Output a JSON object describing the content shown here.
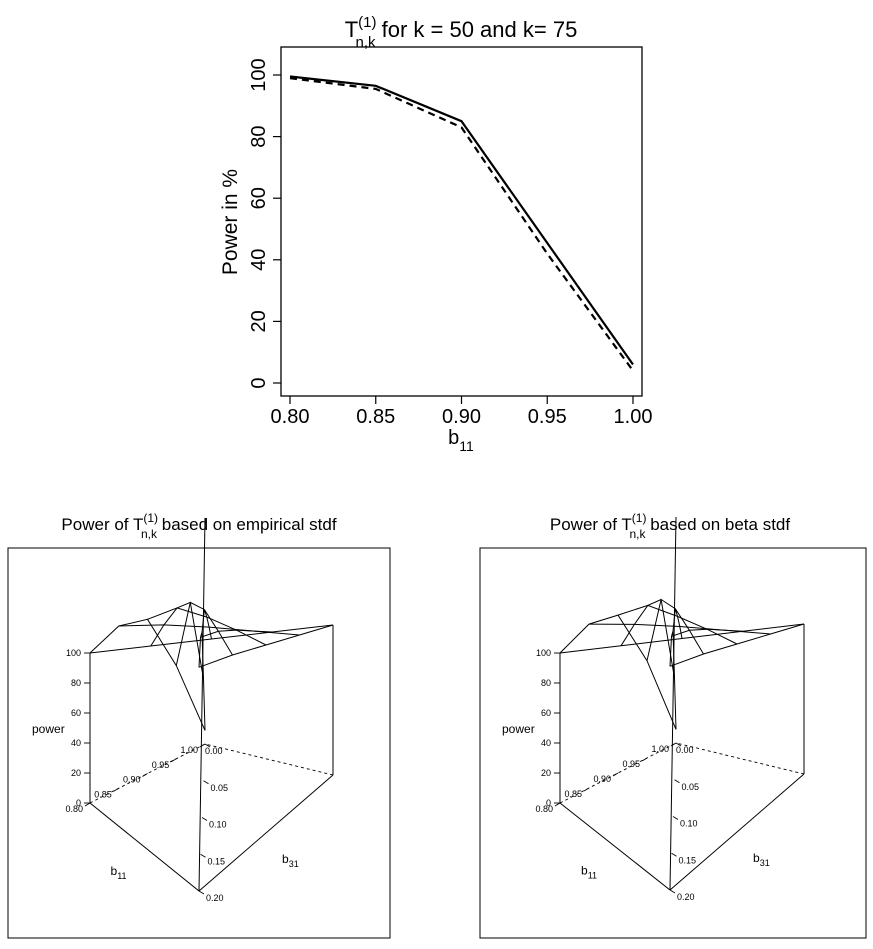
{
  "chart_data": [
    {
      "type": "line",
      "title": {
        "main": "T",
        "sup": "(1)",
        "sub": "n,k",
        "rest": " for k = 50 and k= 75"
      },
      "xlabel": {
        "main": "b",
        "sub": "11"
      },
      "ylabel": "Power in %",
      "x": [
        0.8,
        0.85,
        0.9,
        0.95,
        1.0
      ],
      "x_tick_labels": [
        "0.80",
        "0.85",
        "0.90",
        "0.95",
        "1.00"
      ],
      "y_tick_labels": [
        "0",
        "20",
        "40",
        "60",
        "80",
        "100"
      ],
      "xlim": [
        0.8,
        1.0
      ],
      "ylim": [
        0,
        100
      ],
      "series": [
        {
          "style": "solid",
          "values": [
            99.5,
            96.5,
            85.0,
            45.5,
            6.0
          ]
        },
        {
          "style": "dashed",
          "values": [
            99.0,
            95.5,
            83.0,
            42.0,
            4.0
          ]
        }
      ]
    },
    {
      "type": "surface",
      "title": {
        "pre": "Power of ",
        "main": "T",
        "sup": "(1)",
        "sub": "n,k",
        "rest": " based on empirical stdf"
      },
      "zlabel": "power",
      "xlabel": {
        "main": "b",
        "sub": "11"
      },
      "ylabel": {
        "main": "b",
        "sub": "31"
      },
      "b11": [
        0.8,
        0.85,
        0.9,
        0.95,
        1.0
      ],
      "b31": [
        0.0,
        0.05,
        0.1,
        0.15,
        0.2
      ],
      "b11_tick_labels": [
        "0.80",
        "0.85",
        "0.90",
        "0.95",
        "1.00"
      ],
      "b31_tick_labels": [
        "0.00",
        "0.05",
        "0.10",
        "0.15",
        "0.20"
      ],
      "z_tick_labels": [
        "0",
        "20",
        "40",
        "60",
        "80",
        "100"
      ],
      "zlim": [
        0,
        100
      ],
      "power": [
        [
          100,
          100,
          100,
          100,
          100
        ],
        [
          96,
          99,
          100,
          100,
          100
        ],
        [
          82,
          96,
          99,
          100,
          100
        ],
        [
          45,
          88,
          97,
          99,
          100
        ],
        [
          6,
          45,
          82,
          96,
          99
        ]
      ]
    },
    {
      "type": "surface",
      "title": {
        "pre": "Power of ",
        "main": "T",
        "sup": "(1)",
        "sub": "n,k",
        "rest": " based on beta stdf"
      },
      "zlabel": "power",
      "xlabel": {
        "main": "b",
        "sub": "11"
      },
      "ylabel": {
        "main": "b",
        "sub": "31"
      },
      "b11": [
        0.8,
        0.85,
        0.9,
        0.95,
        1.0
      ],
      "b31": [
        0.0,
        0.05,
        0.1,
        0.15,
        0.2
      ],
      "b11_tick_labels": [
        "0.80",
        "0.85",
        "0.90",
        "0.95",
        "1.00"
      ],
      "b31_tick_labels": [
        "0.00",
        "0.05",
        "0.10",
        "0.15",
        "0.20"
      ],
      "z_tick_labels": [
        "0",
        "20",
        "40",
        "60",
        "80",
        "100"
      ],
      "zlim": [
        0,
        100
      ],
      "power": [
        [
          100,
          100,
          100,
          100,
          100
        ],
        [
          97,
          99,
          100,
          100,
          100
        ],
        [
          84,
          97,
          99,
          100,
          100
        ],
        [
          47,
          89,
          97,
          99,
          100
        ],
        [
          6,
          45,
          82,
          96,
          99
        ]
      ]
    }
  ]
}
